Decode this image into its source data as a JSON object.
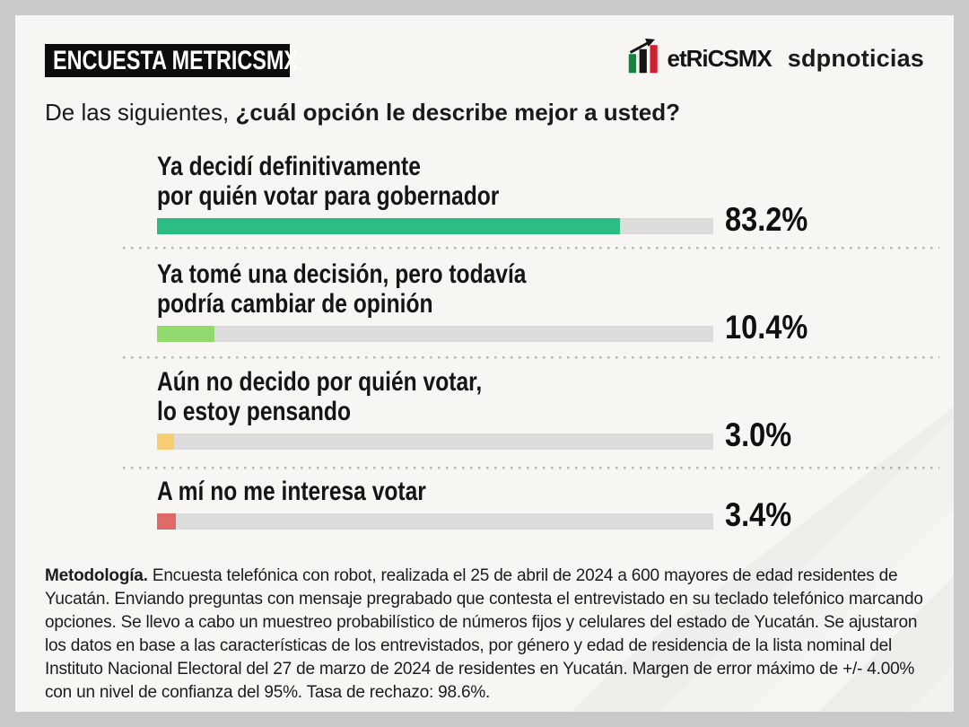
{
  "frame": {
    "border_color": "#c9c9c9",
    "card_color": "#f7f6f3"
  },
  "header": {
    "badge_label": "ENCUESTA METRICSMX",
    "metricsmx_wordmark": "etRiCSMX",
    "sdpnoticias_wordmark": "sdpnoticias",
    "logo_colors": {
      "green": "#17813f",
      "black": "#141414",
      "red": "#cf2030"
    }
  },
  "question": {
    "prefix": "De las siguientes, ",
    "emphasis": "¿cuál opción le describe mejor a usted?"
  },
  "chart_data": {
    "type": "bar",
    "orientation": "horizontal",
    "title": "De las siguientes, ¿cuál opción le describe mejor a usted?",
    "categories": [
      "Ya decidí definitivamente por quién votar para gobernador",
      "Ya tomé una decisión, pero todavía podría cambiar de opinión",
      "Aún no decido por quién votar, lo estoy pensando",
      "A mí no me interesa votar"
    ],
    "values": [
      83.2,
      10.4,
      3.0,
      3.4
    ],
    "value_labels": [
      "83.2%",
      "10.4%",
      "3.0%",
      "3.4%"
    ],
    "bar_colors": [
      "#2dbd84",
      "#92da6e",
      "#f7cd72",
      "#e0696a"
    ],
    "track_color": "#dcdcdc",
    "xlim": [
      0,
      100
    ],
    "grid": false,
    "legend": false
  },
  "rows": [
    {
      "line1": "Ya decidí definitivamente",
      "line2": "por quién votar para gobernador",
      "value": "83.2%",
      "pct": 83.2,
      "color": "#2dbd84"
    },
    {
      "line1": "Ya tomé una decisión, pero todavía",
      "line2": "podría cambiar de opinión",
      "value": "10.4%",
      "pct": 10.4,
      "color": "#92da6e"
    },
    {
      "line1": "Aún no decido por quién votar,",
      "line2": "lo estoy pensando",
      "value": "3.0%",
      "pct": 3.0,
      "color": "#f7cd72"
    },
    {
      "line1": "A mí no me interesa votar",
      "line2": "",
      "value": "3.4%",
      "pct": 3.4,
      "color": "#e0696a"
    }
  ],
  "methodology": {
    "title": "Metodología.",
    "body": " Encuesta telefónica con robot, realizada el 25 de abril de 2024 a 600 mayores de edad residentes de Yucatán. Enviando preguntas con mensaje pregrabado que contesta el entrevistado en su teclado telefónico marcando opciones. Se llevo a cabo un muestreo probabilístico de números fijos y celulares del estado de Yucatán. Se ajustaron los datos en base a las características de los entrevistados, por género y edad de residencia de la lista nominal del Instituto Nacional Electoral del 27 de marzo de 2024 de residentes en Yucatán. Margen de error máximo de +/- 4.00% con un nivel de confianza del 95%. Tasa de rechazo: 98.6%."
  }
}
